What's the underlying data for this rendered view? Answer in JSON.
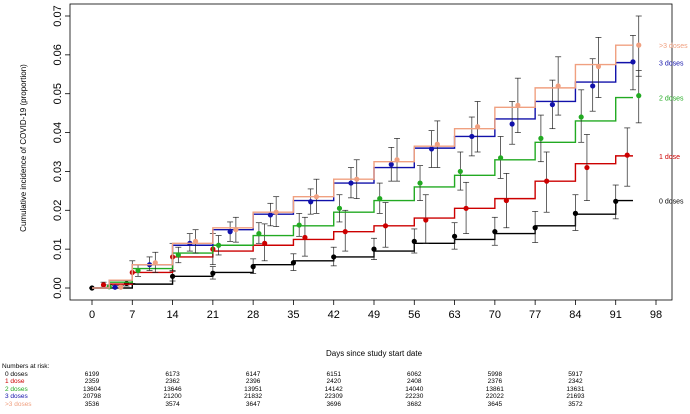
{
  "chart_data": {
    "type": "line",
    "xlabel": "Days since study start date",
    "ylabel": "Cumulative incidence of COVID-19 (proportion)",
    "xlim": [
      0,
      98
    ],
    "ylim": [
      0,
      0.07
    ],
    "x_ticks": [
      "0",
      "7",
      "14",
      "21",
      "28",
      "35",
      "42",
      "49",
      "56",
      "63",
      "70",
      "77",
      "84",
      "91",
      "98"
    ],
    "y_ticks": [
      "0.00",
      "0.01",
      "0.02",
      "0.03",
      "0.04",
      "0.05",
      "0.06",
      "0.07"
    ],
    "legend_placement": "right, at end of each curve",
    "series": [
      {
        "name": "0 doses",
        "color": "#000000",
        "step_x": [
          0,
          7,
          14,
          21,
          28,
          35,
          42,
          49,
          56,
          63,
          70,
          77,
          84,
          91
        ],
        "step_y": [
          0.0,
          0.001,
          0.003,
          0.004,
          0.006,
          0.007,
          0.008,
          0.0095,
          0.0115,
          0.0125,
          0.014,
          0.016,
          0.019,
          0.0225
        ],
        "points": [
          {
            "x": 0,
            "y": 0.0,
            "lo": 0.0,
            "hi": 0.0
          },
          {
            "x": 6,
            "y": 0.0012,
            "lo": 0.0005,
            "hi": 0.0019
          },
          {
            "x": 14,
            "y": 0.003,
            "lo": 0.0018,
            "hi": 0.0042
          },
          {
            "x": 21,
            "y": 0.0038,
            "lo": 0.0023,
            "hi": 0.0055
          },
          {
            "x": 28,
            "y": 0.0055,
            "lo": 0.0037,
            "hi": 0.0075
          },
          {
            "x": 35,
            "y": 0.0065,
            "lo": 0.0045,
            "hi": 0.0088
          },
          {
            "x": 42,
            "y": 0.008,
            "lo": 0.0057,
            "hi": 0.0105
          },
          {
            "x": 49,
            "y": 0.01,
            "lo": 0.0073,
            "hi": 0.0128
          },
          {
            "x": 56,
            "y": 0.012,
            "lo": 0.009,
            "hi": 0.0152
          },
          {
            "x": 63,
            "y": 0.0133,
            "lo": 0.01,
            "hi": 0.0168
          },
          {
            "x": 70,
            "y": 0.0145,
            "lo": 0.011,
            "hi": 0.0182
          },
          {
            "x": 77,
            "y": 0.0155,
            "lo": 0.0117,
            "hi": 0.0197
          },
          {
            "x": 84,
            "y": 0.0192,
            "lo": 0.0148,
            "hi": 0.024
          },
          {
            "x": 91,
            "y": 0.0223,
            "lo": 0.0178,
            "hi": 0.0265
          }
        ]
      },
      {
        "name": "1 dose",
        "color": "#cc0000",
        "step_x": [
          0,
          3,
          7,
          14,
          21,
          28,
          35,
          42,
          49,
          56,
          63,
          70,
          77,
          84,
          91
        ],
        "step_y": [
          0.0,
          0.001,
          0.004,
          0.008,
          0.0095,
          0.011,
          0.0125,
          0.0145,
          0.016,
          0.018,
          0.0205,
          0.023,
          0.0275,
          0.032,
          0.034
        ],
        "points": [
          {
            "x": 2,
            "y": 0.0008,
            "lo": 0.0002,
            "hi": 0.0015
          },
          {
            "x": 7,
            "y": 0.004,
            "lo": 0.0012,
            "hi": 0.007
          },
          {
            "x": 14,
            "y": 0.008,
            "lo": 0.0045,
            "hi": 0.0115
          },
          {
            "x": 21,
            "y": 0.01,
            "lo": 0.006,
            "hi": 0.014
          },
          {
            "x": 30,
            "y": 0.0115,
            "lo": 0.007,
            "hi": 0.0165
          },
          {
            "x": 37,
            "y": 0.013,
            "lo": 0.0082,
            "hi": 0.0182
          },
          {
            "x": 44,
            "y": 0.0145,
            "lo": 0.0095,
            "hi": 0.02
          },
          {
            "x": 51,
            "y": 0.016,
            "lo": 0.0105,
            "hi": 0.022
          },
          {
            "x": 58,
            "y": 0.0175,
            "lo": 0.0115,
            "hi": 0.024
          },
          {
            "x": 65,
            "y": 0.0205,
            "lo": 0.014,
            "hi": 0.0272
          },
          {
            "x": 72,
            "y": 0.0225,
            "lo": 0.0155,
            "hi": 0.0295
          },
          {
            "x": 79,
            "y": 0.0275,
            "lo": 0.0195,
            "hi": 0.035
          },
          {
            "x": 86,
            "y": 0.031,
            "lo": 0.0225,
            "hi": 0.0395
          },
          {
            "x": 93,
            "y": 0.0342,
            "lo": 0.0262,
            "hi": 0.0412
          }
        ]
      },
      {
        "name": "2 doses",
        "color": "#22aa22",
        "step_x": [
          0,
          3,
          7,
          14,
          21,
          28,
          35,
          42,
          49,
          56,
          63,
          70,
          77,
          84,
          91
        ],
        "step_y": [
          0.0,
          0.0015,
          0.005,
          0.009,
          0.011,
          0.0135,
          0.016,
          0.0195,
          0.0225,
          0.026,
          0.029,
          0.033,
          0.0375,
          0.043,
          0.049
        ],
        "points": [
          {
            "x": 3,
            "y": 0.0003,
            "lo": 0.0,
            "hi": 0.0008
          },
          {
            "x": 8,
            "y": 0.0045,
            "lo": 0.003,
            "hi": 0.006
          },
          {
            "x": 15,
            "y": 0.0085,
            "lo": 0.0065,
            "hi": 0.0105
          },
          {
            "x": 22,
            "y": 0.011,
            "lo": 0.0085,
            "hi": 0.0135
          },
          {
            "x": 29,
            "y": 0.014,
            "lo": 0.0115,
            "hi": 0.0168
          },
          {
            "x": 36,
            "y": 0.0162,
            "lo": 0.0133,
            "hi": 0.0192
          },
          {
            "x": 43,
            "y": 0.0205,
            "lo": 0.017,
            "hi": 0.024
          },
          {
            "x": 50,
            "y": 0.023,
            "lo": 0.0192,
            "hi": 0.027
          },
          {
            "x": 57,
            "y": 0.027,
            "lo": 0.0225,
            "hi": 0.0315
          },
          {
            "x": 64,
            "y": 0.03,
            "lo": 0.0252,
            "hi": 0.035
          },
          {
            "x": 71,
            "y": 0.0335,
            "lo": 0.0282,
            "hi": 0.039
          },
          {
            "x": 78,
            "y": 0.0385,
            "lo": 0.0325,
            "hi": 0.0445
          },
          {
            "x": 85,
            "y": 0.044,
            "lo": 0.0375,
            "hi": 0.051
          },
          {
            "x": 95,
            "y": 0.0495,
            "lo": 0.0425,
            "hi": 0.056
          }
        ]
      },
      {
        "name": "3 doses",
        "color": "#1111aa",
        "step_x": [
          0,
          3,
          7,
          14,
          21,
          28,
          35,
          42,
          49,
          56,
          63,
          70,
          77,
          84,
          91
        ],
        "step_y": [
          0.0,
          0.002,
          0.006,
          0.011,
          0.015,
          0.019,
          0.0225,
          0.027,
          0.031,
          0.036,
          0.039,
          0.0435,
          0.048,
          0.053,
          0.058
        ],
        "points": [
          {
            "x": 4,
            "y": 0.0002,
            "lo": 0.0,
            "hi": 0.0006
          },
          {
            "x": 10,
            "y": 0.006,
            "lo": 0.0045,
            "hi": 0.008
          },
          {
            "x": 17,
            "y": 0.0115,
            "lo": 0.0095,
            "hi": 0.014
          },
          {
            "x": 24,
            "y": 0.0145,
            "lo": 0.012,
            "hi": 0.017
          },
          {
            "x": 31,
            "y": 0.0188,
            "lo": 0.016,
            "hi": 0.0218
          },
          {
            "x": 38,
            "y": 0.0222,
            "lo": 0.019,
            "hi": 0.0255
          },
          {
            "x": 45,
            "y": 0.027,
            "lo": 0.0232,
            "hi": 0.031
          },
          {
            "x": 52,
            "y": 0.0318,
            "lo": 0.0275,
            "hi": 0.0362
          },
          {
            "x": 59,
            "y": 0.0358,
            "lo": 0.031,
            "hi": 0.0405
          },
          {
            "x": 66,
            "y": 0.039,
            "lo": 0.034,
            "hi": 0.044
          },
          {
            "x": 73,
            "y": 0.0422,
            "lo": 0.037,
            "hi": 0.048
          },
          {
            "x": 80,
            "y": 0.0472,
            "lo": 0.041,
            "hi": 0.0535
          },
          {
            "x": 87,
            "y": 0.052,
            "lo": 0.0455,
            "hi": 0.059
          },
          {
            "x": 94,
            "y": 0.0582,
            "lo": 0.051,
            "hi": 0.065
          }
        ]
      },
      {
        "name": ">3 doses",
        "color": "#f0a080",
        "step_x": [
          0,
          3,
          7,
          14,
          21,
          28,
          35,
          42,
          49,
          56,
          63,
          70,
          77,
          84,
          91
        ],
        "step_y": [
          0.0,
          0.002,
          0.006,
          0.0115,
          0.0155,
          0.0195,
          0.0235,
          0.028,
          0.0325,
          0.0365,
          0.041,
          0.0465,
          0.0515,
          0.0575,
          0.0625
        ],
        "points": [
          {
            "x": 5,
            "y": 0.0002,
            "lo": 0.0,
            "hi": 0.0006
          },
          {
            "x": 11,
            "y": 0.0065,
            "lo": 0.004,
            "hi": 0.0092
          },
          {
            "x": 18,
            "y": 0.012,
            "lo": 0.009,
            "hi": 0.015
          },
          {
            "x": 25,
            "y": 0.015,
            "lo": 0.0118,
            "hi": 0.0182
          },
          {
            "x": 32,
            "y": 0.0195,
            "lo": 0.0158,
            "hi": 0.0235
          },
          {
            "x": 39,
            "y": 0.0235,
            "lo": 0.0192,
            "hi": 0.028
          },
          {
            "x": 46,
            "y": 0.028,
            "lo": 0.023,
            "hi": 0.033
          },
          {
            "x": 53,
            "y": 0.033,
            "lo": 0.0275,
            "hi": 0.0385
          },
          {
            "x": 60,
            "y": 0.037,
            "lo": 0.031,
            "hi": 0.043
          },
          {
            "x": 67,
            "y": 0.0415,
            "lo": 0.035,
            "hi": 0.048
          },
          {
            "x": 74,
            "y": 0.047,
            "lo": 0.04,
            "hi": 0.054
          },
          {
            "x": 81,
            "y": 0.052,
            "lo": 0.0445,
            "hi": 0.0595
          },
          {
            "x": 88,
            "y": 0.057,
            "lo": 0.049,
            "hi": 0.0645
          },
          {
            "x": 95,
            "y": 0.0625,
            "lo": 0.0545,
            "hi": 0.07
          }
        ]
      }
    ]
  },
  "risk_table": {
    "title": "Numbers at risk:",
    "days": [
      0,
      14,
      28,
      42,
      56,
      70,
      84
    ],
    "rows": [
      {
        "label": "0 doses",
        "color": "#000000",
        "values": [
          "6199",
          "6173",
          "6147",
          "6151",
          "6062",
          "5998",
          "5917"
        ]
      },
      {
        "label": "1 dose",
        "color": "#cc0000",
        "values": [
          "2359",
          "2362",
          "2396",
          "2420",
          "2408",
          "2376",
          "2342"
        ]
      },
      {
        "label": "2 doses",
        "color": "#22aa22",
        "values": [
          "13604",
          "13646",
          "13951",
          "14142",
          "14040",
          "13861",
          "13631"
        ]
      },
      {
        "label": "3 doses",
        "color": "#1111aa",
        "values": [
          "20798",
          "21200",
          "21832",
          "22309",
          "22230",
          "22022",
          "21693"
        ]
      },
      {
        "label": ">3 doses",
        "color": "#f0a080",
        "values": [
          "3536",
          "3574",
          "3647",
          "3696",
          "3682",
          "3645",
          "3572"
        ]
      }
    ]
  }
}
